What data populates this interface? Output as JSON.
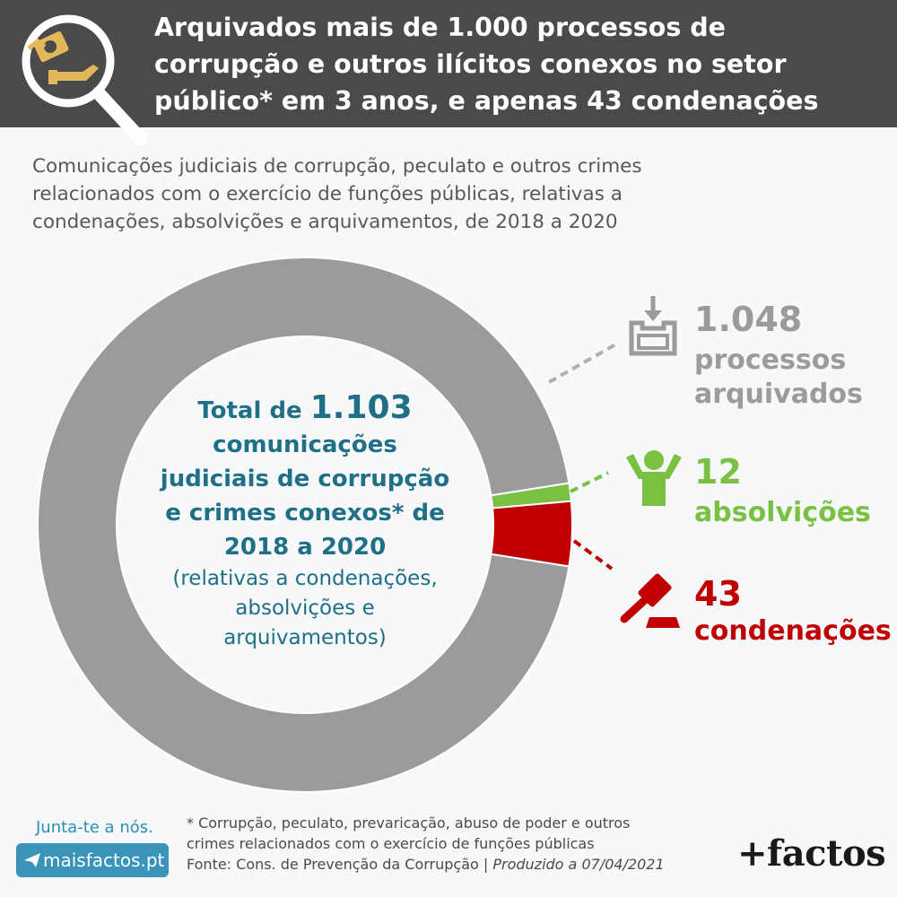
{
  "header": {
    "title_line1": "Arquivados mais de 1.000 processos de",
    "title_line2": "corrupção e outros ilícitos conexos no setor",
    "title_line3": "público* em 3 anos, e apenas 43 condenações"
  },
  "subtitle": {
    "line1": "Comunicações judiciais de corrupção, peculato e outros crimes",
    "line2": "relacionados com o exercício de funções públicas, relativas a",
    "line3": "condenações, absolvições e arquivamentos, de 2018 a 2020"
  },
  "chart_data": {
    "type": "pie",
    "categories": [
      "processos arquivados",
      "absolvições",
      "condenações"
    ],
    "values": [
      1048,
      12,
      43
    ],
    "display_values": [
      "1.048",
      "12",
      "43"
    ],
    "total": 1103,
    "colors": [
      "#9b9b9b",
      "#7ac143",
      "#c00000"
    ],
    "center_text": {
      "prefix": "Total de ",
      "total_display": "1.103",
      "line2": "comunicações",
      "line3": "judiciais de corrupção",
      "line4": "e crimes conexos* de",
      "line5": "2018 a 2020",
      "note1": "(relativas a condenações,",
      "note2": "absolvições e",
      "note3": "arquivamentos)"
    }
  },
  "labels": {
    "archived_line1": "processos",
    "archived_line2": "arquivados",
    "acquitted_line1": "absolvições",
    "convicted_line1": "condenações"
  },
  "icons": {
    "header": "magnifier-hand-money-icon",
    "archived": "archive-box-icon",
    "acquitted": "person-arms-up-icon",
    "convicted": "gavel-icon"
  },
  "footer": {
    "cta_text": "Junta-te a nós.",
    "cta_button": "maisfactos.pt",
    "note1": "* Corrupção, peculato, prevaricação, abuso de poder e outros",
    "note2": "crimes relacionados com o exercício de funções públicas",
    "source": "Fonte: Cons. de Prevenção da Corrupção | ",
    "produced": "Produzido a 07/04/2021",
    "brand": "+factos"
  }
}
